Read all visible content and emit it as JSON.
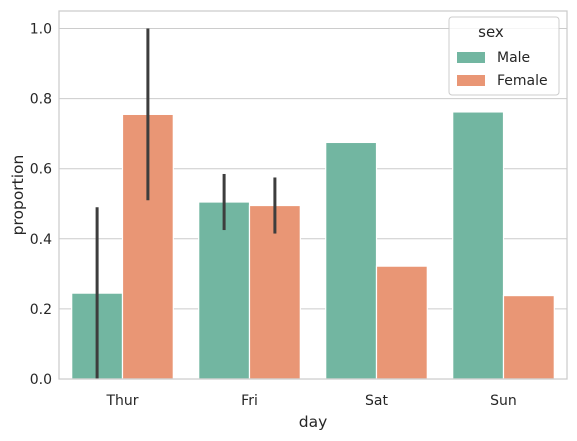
{
  "chart_data": {
    "type": "bar",
    "categories": [
      "Thur",
      "Fri",
      "Sat",
      "Sun"
    ],
    "series": [
      {
        "name": "Male",
        "color": "#72b6a1",
        "values": [
          0.245,
          0.505,
          0.675,
          0.762
        ],
        "ci": [
          [
            0.0,
            0.49
          ],
          [
            0.425,
            0.585
          ],
          null,
          null
        ]
      },
      {
        "name": "Female",
        "color": "#e99675",
        "values": [
          0.755,
          0.495,
          0.322,
          0.238
        ],
        "ci": [
          [
            0.51,
            1.0
          ],
          [
            0.415,
            0.575
          ],
          null,
          null
        ]
      }
    ],
    "xlabel": "day",
    "ylabel": "proportion",
    "ylim": [
      0,
      1.05
    ],
    "yticks": [
      "0.0",
      "0.2",
      "0.4",
      "0.6",
      "0.8",
      "1.0"
    ],
    "grid": "horizontal",
    "legend": {
      "title": "sex",
      "placement": "top-right"
    }
  }
}
